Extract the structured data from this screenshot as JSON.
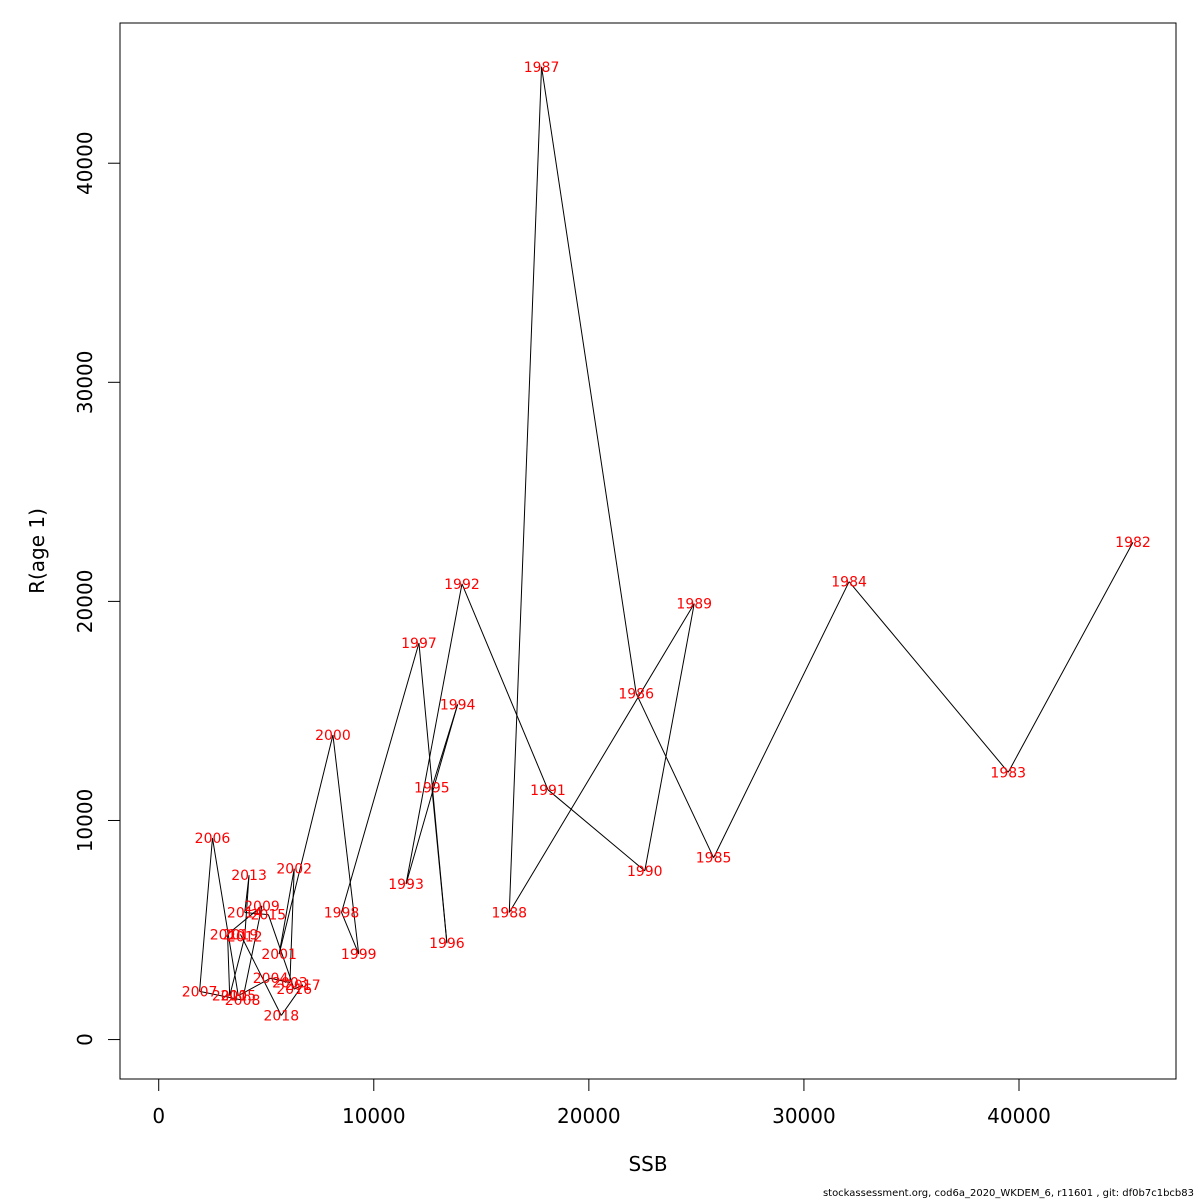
{
  "chart_data": {
    "type": "scatter",
    "connected": true,
    "xlabel": "SSB",
    "ylabel": "R(age 1)",
    "xlim": [
      -1800,
      47300
    ],
    "ylim": [
      -1800,
      46400
    ],
    "x_ticks": [
      0,
      10000,
      20000,
      30000,
      40000
    ],
    "y_ticks": [
      0,
      10000,
      20000,
      30000,
      40000
    ],
    "label_color": "#ff0000",
    "line_color": "#000000",
    "points": [
      {
        "label": "1982",
        "x": 45300,
        "y": 22700
      },
      {
        "label": "1983",
        "x": 39500,
        "y": 12200
      },
      {
        "label": "1984",
        "x": 32100,
        "y": 20900
      },
      {
        "label": "1985",
        "x": 25800,
        "y": 8300
      },
      {
        "label": "1986",
        "x": 22200,
        "y": 15800
      },
      {
        "label": "1987",
        "x": 17800,
        "y": 44400
      },
      {
        "label": "1988",
        "x": 16300,
        "y": 5800
      },
      {
        "label": "1989",
        "x": 24900,
        "y": 19900
      },
      {
        "label": "1990",
        "x": 22600,
        "y": 7700
      },
      {
        "label": "1991",
        "x": 18100,
        "y": 11400
      },
      {
        "label": "1992",
        "x": 14100,
        "y": 20800
      },
      {
        "label": "1993",
        "x": 11500,
        "y": 7100
      },
      {
        "label": "1994",
        "x": 13900,
        "y": 15300
      },
      {
        "label": "1995",
        "x": 12700,
        "y": 11500
      },
      {
        "label": "1996",
        "x": 13400,
        "y": 4400
      },
      {
        "label": "1997",
        "x": 12100,
        "y": 18100
      },
      {
        "label": "1998",
        "x": 8500,
        "y": 5800
      },
      {
        "label": "1999",
        "x": 9300,
        "y": 3900
      },
      {
        "label": "2000",
        "x": 8100,
        "y": 13900
      },
      {
        "label": "2001",
        "x": 5600,
        "y": 3900
      },
      {
        "label": "2002",
        "x": 6300,
        "y": 7800
      },
      {
        "label": "2003",
        "x": 6100,
        "y": 2600
      },
      {
        "label": "2004",
        "x": 5200,
        "y": 2800
      },
      {
        "label": "2005",
        "x": 3700,
        "y": 2000
      },
      {
        "label": "2006",
        "x": 2500,
        "y": 9200
      },
      {
        "label": "2007",
        "x": 1900,
        "y": 2200
      },
      {
        "label": "2008",
        "x": 3900,
        "y": 1800
      },
      {
        "label": "2009",
        "x": 4800,
        "y": 6100
      },
      {
        "label": "2010",
        "x": 3200,
        "y": 4800
      },
      {
        "label": "2011",
        "x": 3300,
        "y": 2000
      },
      {
        "label": "2012",
        "x": 4000,
        "y": 4700
      },
      {
        "label": "2013",
        "x": 4200,
        "y": 7500
      },
      {
        "label": "2014",
        "x": 4000,
        "y": 5800
      },
      {
        "label": "2015",
        "x": 5100,
        "y": 5700
      },
      {
        "label": "2016",
        "x": 6300,
        "y": 2300
      },
      {
        "label": "2017",
        "x": 6700,
        "y": 2500
      },
      {
        "label": "2018",
        "x": 5700,
        "y": 1100
      },
      {
        "label": "2019",
        "x": 3800,
        "y": 4800
      }
    ]
  },
  "footer": {
    "text": "stockassessment.org, cod6a_2020_WKDEM_6, r11601 , git: df0b7c1bcb83"
  }
}
